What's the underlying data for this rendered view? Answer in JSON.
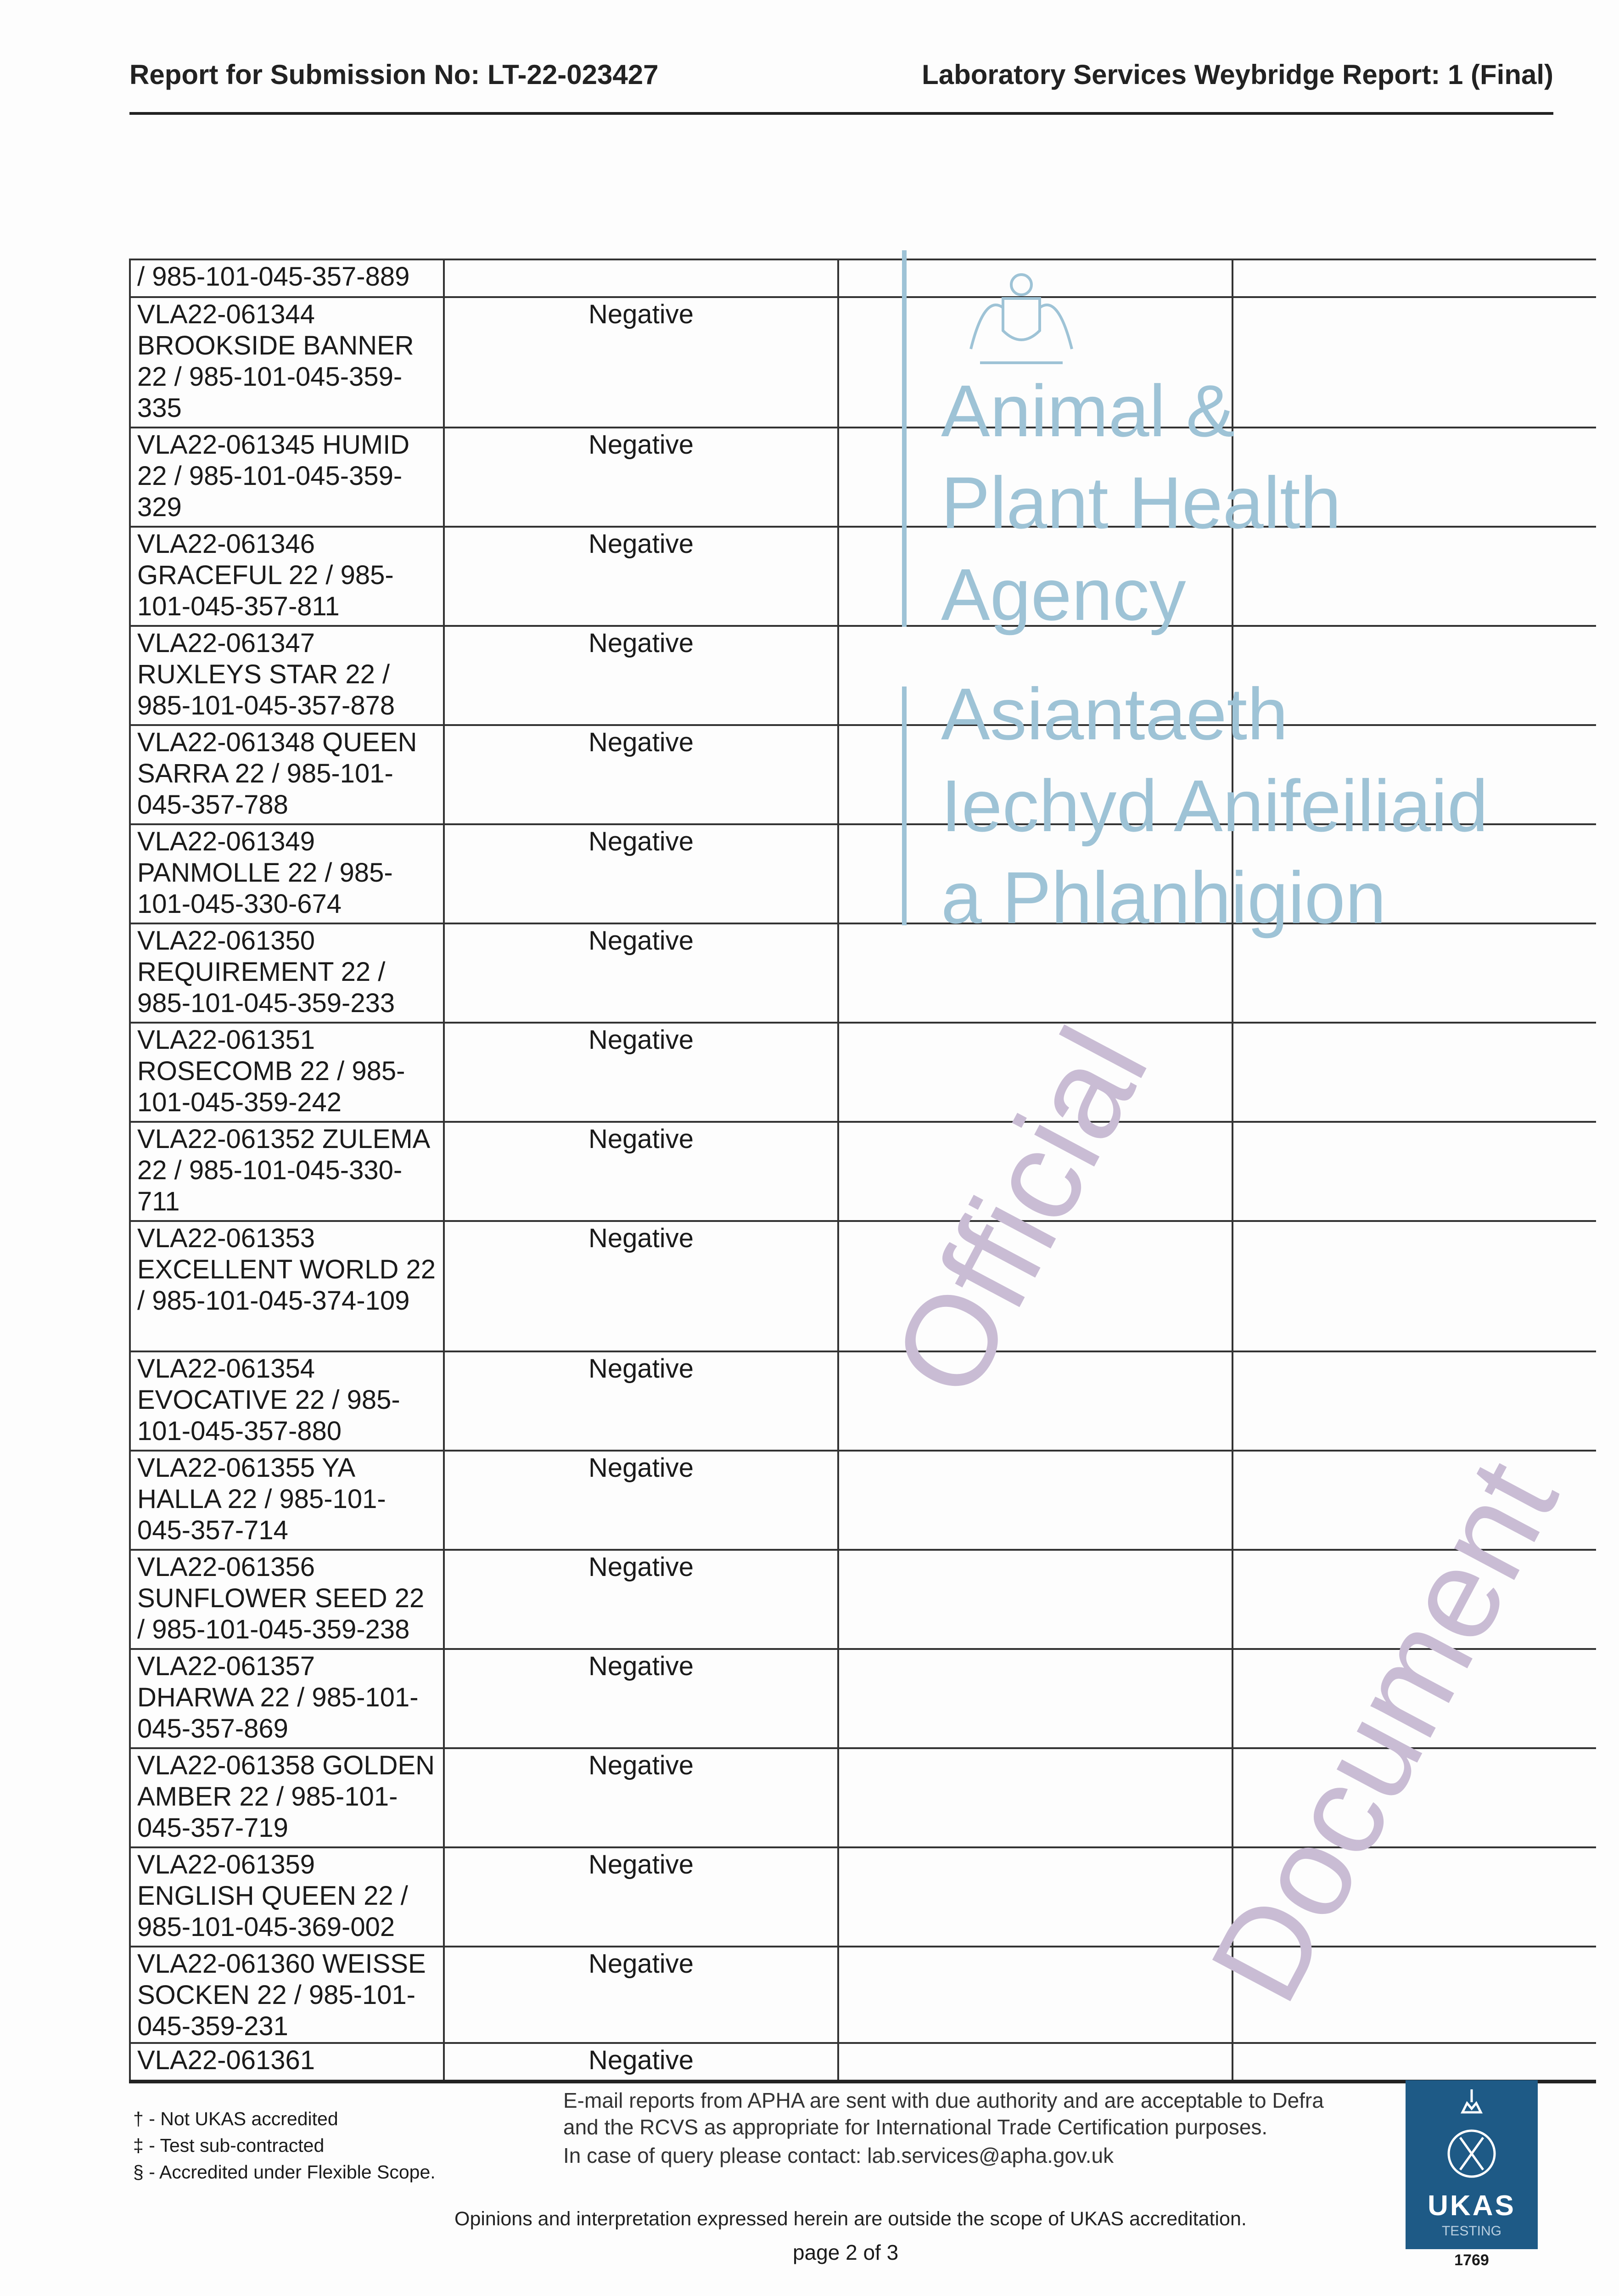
{
  "header": {
    "left": "Report for Submission No: LT-22-023427",
    "right": "Laboratory Services Weybridge Report: 1 (Final)"
  },
  "watermarks": {
    "agency_en": "Animal &\nPlant Health\nAgency",
    "agency_cy": "Asiantaeth\nIechyd Anifeiliaid\na Phlanhigion",
    "official_1": "Official",
    "official_2": "Document",
    "color_logo": "#9ec3d6"
  },
  "table": {
    "rows": [
      {
        "sample": "/ 985-101-045-357-889",
        "result": ""
      },
      {
        "sample": "VLA22-061344 BROOKSIDE BANNER 22 / 985-101-045-359-335",
        "result": "Negative"
      },
      {
        "sample": "VLA22-061345 HUMID 22 / 985-101-045-359-329",
        "result": "Negative"
      },
      {
        "sample": "VLA22-061346 GRACEFUL 22 / 985-101-045-357-811",
        "result": "Negative"
      },
      {
        "sample": "VLA22-061347 RUXLEYS STAR 22 / 985-101-045-357-878",
        "result": "Negative"
      },
      {
        "sample": "VLA22-061348 QUEEN SARRA 22 / 985-101-045-357-788",
        "result": "Negative"
      },
      {
        "sample": "VLA22-061349 PANMOLLE 22 / 985-101-045-330-674",
        "result": "Negative"
      },
      {
        "sample": "VLA22-061350 REQUIREMENT 22 / 985-101-045-359-233",
        "result": "Negative"
      },
      {
        "sample": "VLA22-061351 ROSECOMB 22 / 985-101-045-359-242",
        "result": "Negative"
      },
      {
        "sample": "VLA22-061352 ZULEMA 22 / 985-101-045-330-711",
        "result": "Negative"
      },
      {
        "sample": "VLA22-061353 EXCELLENT WORLD 22 / 985-101-045-374-109",
        "result": "Negative"
      },
      {
        "sample": "VLA22-061354 EVOCATIVE 22 / 985-101-045-357-880",
        "result": "Negative"
      },
      {
        "sample": "VLA22-061355 YA HALLA 22 / 985-101-045-357-714",
        "result": "Negative"
      },
      {
        "sample": "VLA22-061356 SUNFLOWER SEED 22 / 985-101-045-359-238",
        "result": "Negative"
      },
      {
        "sample": "VLA22-061357 DHARWA 22 / 985-101-045-357-869",
        "result": "Negative"
      },
      {
        "sample": "VLA22-061358 GOLDEN AMBER 22 / 985-101-045-357-719",
        "result": "Negative"
      },
      {
        "sample": "VLA22-061359 ENGLISH QUEEN 22 / 985-101-045-369-002",
        "result": "Negative"
      },
      {
        "sample": "VLA22-061360 WEISSE SOCKEN 22 / 985-101-045-359-231",
        "result": "Negative"
      },
      {
        "sample": "VLA22-061361",
        "result": "Negative"
      }
    ]
  },
  "footer": {
    "notes": [
      "† - Not UKAS accredited",
      "‡ - Test sub-contracted",
      "§ - Accredited under Flexible Scope."
    ],
    "email_notice": "E-mail reports from APHA are sent with due authority and are acceptable to Defra and the RCVS as appropriate for International Trade Certification purposes.",
    "contact": "In case of query please contact: lab.services@apha.gov.uk",
    "opinions": "Opinions and interpretation expressed herein are outside the scope of UKAS accreditation.",
    "page": "page 2 of 3"
  },
  "ukas": {
    "name": "UKAS",
    "sub": "TESTING",
    "number": "1769",
    "color": "#1e5a86"
  }
}
